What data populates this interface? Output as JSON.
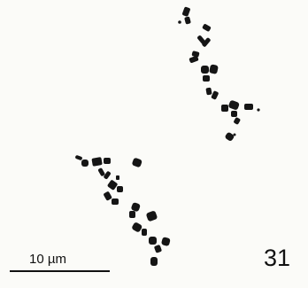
{
  "figure": {
    "scale_label": "10 µm",
    "panel_number": "31",
    "colors": {
      "background": "#fbfbf8",
      "chromosome": "#151515",
      "text": "#111111"
    }
  }
}
